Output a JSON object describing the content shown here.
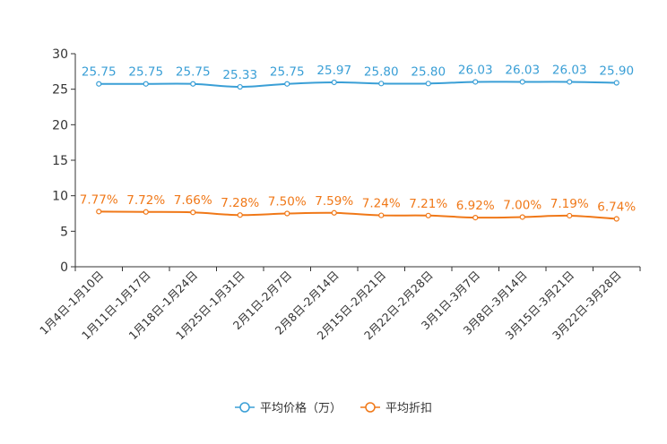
{
  "chart_data": {
    "type": "line",
    "title": "",
    "xlabel": "",
    "ylabel": "",
    "ylim": [
      0,
      30
    ],
    "yticks": [
      0,
      5,
      10,
      15,
      20,
      25,
      30
    ],
    "categories": [
      "1月4日-1月10日",
      "1月11日-1月17日",
      "1月18日-1月24日",
      "1月25日-1月31日",
      "2月1日-2月7日",
      "2月8日-2月14日",
      "2月15日-2月21日",
      "2月22日-2月28日",
      "3月1日-3月7日",
      "3月8日-3月14日",
      "3月15日-3月21日",
      "3月22日-3月28日"
    ],
    "series": [
      {
        "name": "平均价格（万）",
        "color": "#3a9fd6",
        "values": [
          25.75,
          25.75,
          25.75,
          25.33,
          25.75,
          25.97,
          25.8,
          25.8,
          26.03,
          26.03,
          26.03,
          25.9
        ],
        "labels": [
          "25.75",
          "25.75",
          "25.75",
          "25.33",
          "25.75",
          "25.97",
          "25.80",
          "25.80",
          "26.03",
          "26.03",
          "26.03",
          "25.90"
        ]
      },
      {
        "name": "平均折扣",
        "color": "#f07818",
        "values": [
          7.77,
          7.72,
          7.66,
          7.28,
          7.5,
          7.59,
          7.24,
          7.21,
          6.92,
          7.0,
          7.19,
          6.74
        ],
        "labels": [
          "7.77%",
          "7.72%",
          "7.66%",
          "7.28%",
          "7.50%",
          "7.59%",
          "7.24%",
          "7.21%",
          "6.92%",
          "7.00%",
          "7.19%",
          "6.74%"
        ]
      }
    ],
    "legend_position": "bottom-center"
  }
}
